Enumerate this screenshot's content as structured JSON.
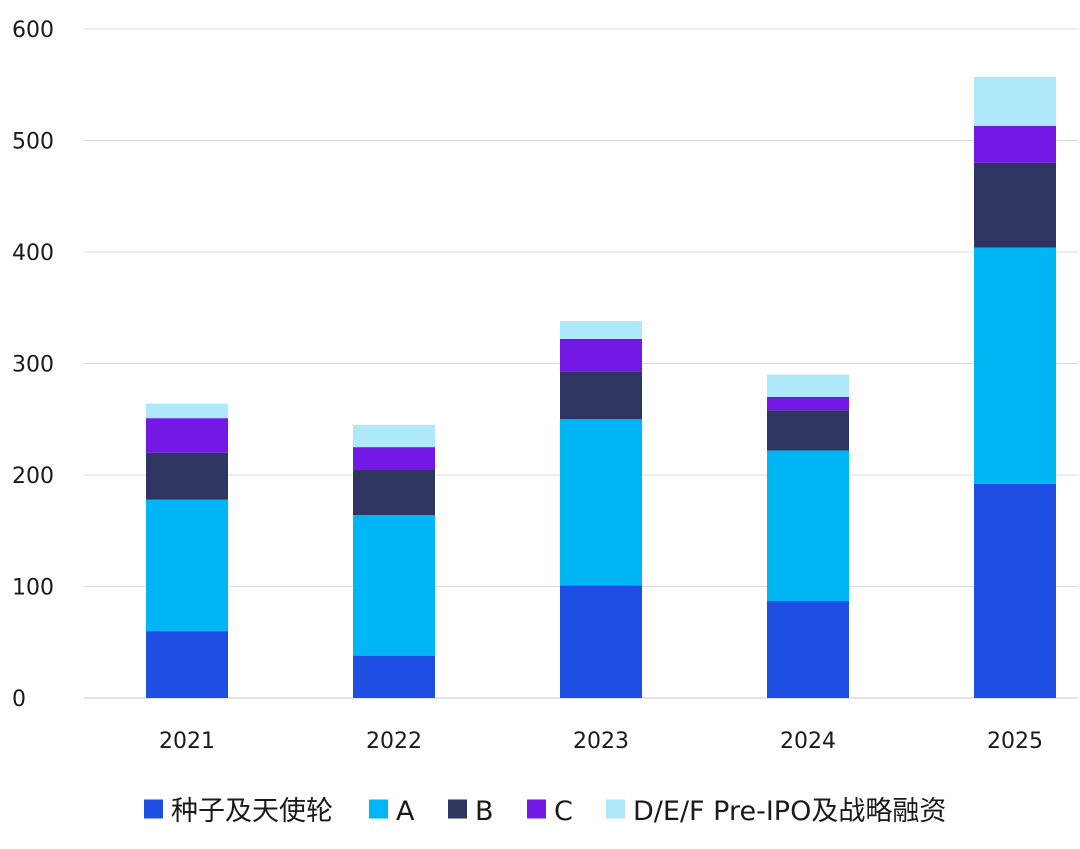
{
  "chart_data": {
    "type": "bar",
    "stacked": true,
    "title": "",
    "xlabel": "",
    "ylabel": "",
    "categories": [
      "2021",
      "2022",
      "2023",
      "2024",
      "2025"
    ],
    "ylim": [
      0,
      600
    ],
    "yticks": [
      0,
      100,
      200,
      300,
      400,
      500,
      600
    ],
    "grid": true,
    "legend_position": "bottom",
    "series": [
      {
        "name": "种子及天使轮",
        "color": "#1f4ee3",
        "values": [
          60,
          38,
          101,
          87,
          192
        ]
      },
      {
        "name": "A",
        "color": "#00b5f3",
        "values": [
          118,
          126,
          149,
          135,
          212
        ]
      },
      {
        "name": "B",
        "color": "#2e3560",
        "values": [
          42,
          41,
          43,
          36,
          76
        ]
      },
      {
        "name": "C",
        "color": "#7418e6",
        "values": [
          31,
          20,
          29,
          12,
          33
        ]
      },
      {
        "name": "D/E/F Pre-IPO及战略融资",
        "color": "#aee8fb",
        "values": [
          13,
          20,
          16,
          20,
          44
        ]
      }
    ]
  }
}
